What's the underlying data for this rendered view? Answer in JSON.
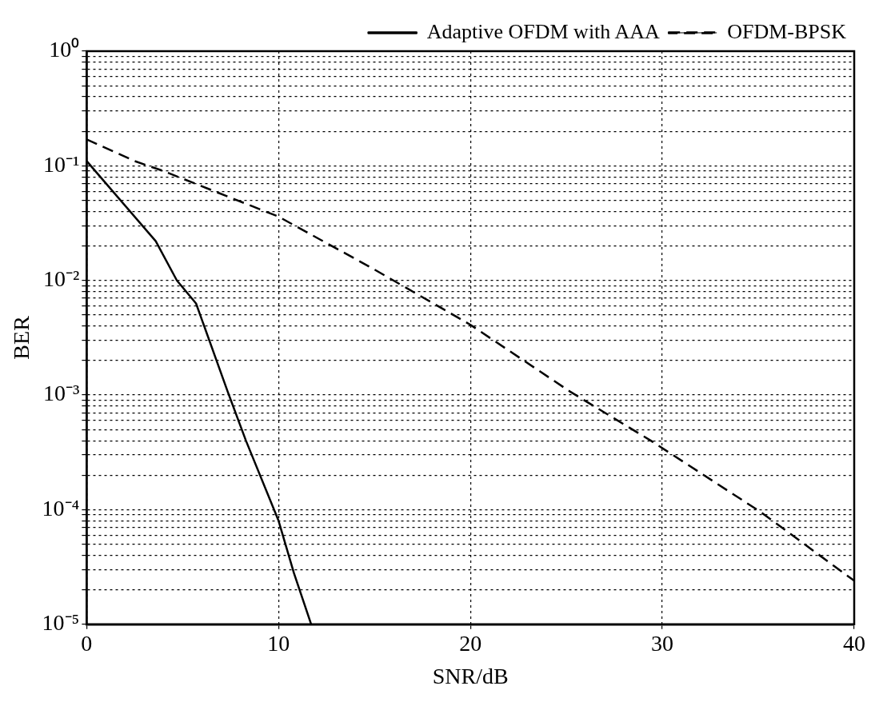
{
  "chart_data": {
    "type": "line",
    "xlabel": "SNR/dB",
    "ylabel": "BER",
    "log": "y",
    "grid": true,
    "legend": "top right",
    "marker": "none",
    "xlim": [
      0,
      40
    ],
    "xticks": [
      0,
      10,
      20,
      30,
      40
    ],
    "ylim": [
      1e-05,
      1
    ],
    "yticks": [
      {
        "value": 1e-05,
        "label": "10⁻⁵"
      },
      {
        "value": 2e-05,
        "label": null
      },
      {
        "value": 3e-05,
        "label": null
      },
      {
        "value": 4e-05,
        "label": null
      },
      {
        "value": 5e-05,
        "label": null
      },
      {
        "value": 6e-05,
        "label": null
      },
      {
        "value": 7e-05,
        "label": null
      },
      {
        "value": 8e-05,
        "label": null
      },
      {
        "value": 9e-05,
        "label": null
      },
      {
        "value": 0.0001,
        "label": "10⁻⁴"
      },
      {
        "value": 0.0002,
        "label": null
      },
      {
        "value": 0.0003,
        "label": null
      },
      {
        "value": 0.0004,
        "label": null
      },
      {
        "value": 0.0005,
        "label": null
      },
      {
        "value": 0.0006,
        "label": null
      },
      {
        "value": 0.0007,
        "label": null
      },
      {
        "value": 0.0008,
        "label": null
      },
      {
        "value": 0.0009,
        "label": null
      },
      {
        "value": 0.001,
        "label": "10⁻³"
      },
      {
        "value": 0.002,
        "label": null
      },
      {
        "value": 0.003,
        "label": null
      },
      {
        "value": 0.004,
        "label": null
      },
      {
        "value": 0.005,
        "label": null
      },
      {
        "value": 0.006,
        "label": null
      },
      {
        "value": 0.007,
        "label": null
      },
      {
        "value": 0.008,
        "label": null
      },
      {
        "value": 0.009,
        "label": null
      },
      {
        "value": 0.01,
        "label": "10⁻²"
      },
      {
        "value": 0.02,
        "label": null
      },
      {
        "value": 0.03,
        "label": null
      },
      {
        "value": 0.04,
        "label": null
      },
      {
        "value": 0.05,
        "label": null
      },
      {
        "value": 0.06,
        "label": null
      },
      {
        "value": 0.07,
        "label": null
      },
      {
        "value": 0.08,
        "label": null
      },
      {
        "value": 0.09,
        "label": null
      },
      {
        "value": 0.1,
        "label": "10⁻¹"
      },
      {
        "value": 0.2,
        "label": null
      },
      {
        "value": 0.3,
        "label": null
      },
      {
        "value": 0.4,
        "label": null
      },
      {
        "value": 0.5,
        "label": null
      },
      {
        "value": 0.6,
        "label": null
      },
      {
        "value": 0.7,
        "label": null
      },
      {
        "value": 0.8,
        "label": null
      },
      {
        "value": 0.9,
        "label": null
      },
      {
        "value": 1,
        "label": "10⁰"
      }
    ],
    "series": [
      {
        "name": "Adaptive OFDM with AAA",
        "color": "#000000",
        "line_style": "solid",
        "x": [
          0,
          3.6,
          4.7,
          5.7,
          7.35,
          8.3,
          10,
          10.8,
          11.7
        ],
        "values": [
          0.11,
          0.022,
          0.01,
          0.0063,
          0.00107,
          0.0004,
          8e-05,
          2.8e-05,
          1e-05
        ]
      },
      {
        "name": "OFDM-BPSK",
        "color": "#000000",
        "line_style": "dashed",
        "x": [
          0,
          2.5,
          4,
          10,
          14.8,
          20,
          25.2,
          29.4,
          35.1,
          40
        ],
        "values": [
          0.17,
          0.11,
          0.09,
          0.036,
          0.013,
          0.0041,
          0.00107,
          0.0004,
          9.6e-05,
          2.4e-05
        ]
      }
    ]
  }
}
